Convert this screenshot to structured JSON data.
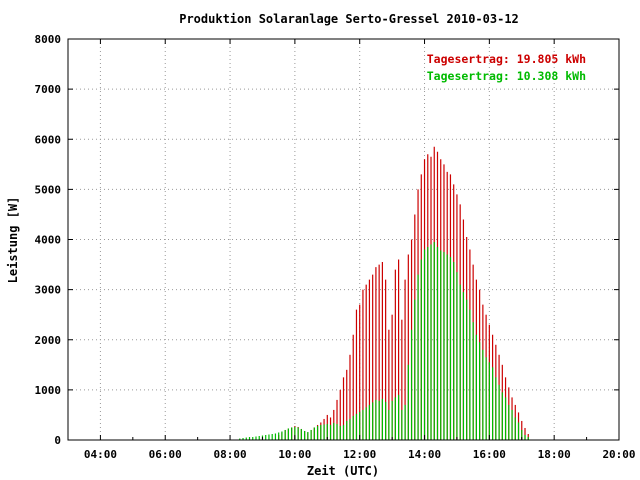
{
  "chart_data": {
    "type": "bar",
    "title": "Produktion Solaranlage Serto-Gressel 2010-03-12",
    "xlabel": "Zeit (UTC)",
    "ylabel": "Leistung [W]",
    "xlim": [
      3.0,
      20.0
    ],
    "ylim": [
      0,
      8000
    ],
    "grid": true,
    "legend_position": "top-right",
    "x_ticks": [
      {
        "value": 4,
        "label": "04:00"
      },
      {
        "value": 6,
        "label": "06:00"
      },
      {
        "value": 8,
        "label": "08:00"
      },
      {
        "value": 10,
        "label": "10:00"
      },
      {
        "value": 12,
        "label": "12:00"
      },
      {
        "value": 14,
        "label": "14:00"
      },
      {
        "value": 16,
        "label": "16:00"
      },
      {
        "value": 18,
        "label": "18:00"
      },
      {
        "value": 20,
        "label": "20:00"
      }
    ],
    "y_ticks": [
      {
        "value": 0,
        "label": "0"
      },
      {
        "value": 1000,
        "label": "1000"
      },
      {
        "value": 2000,
        "label": "2000"
      },
      {
        "value": 3000,
        "label": "3000"
      },
      {
        "value": 4000,
        "label": "4000"
      },
      {
        "value": 5000,
        "label": "5000"
      },
      {
        "value": 6000,
        "label": "6000"
      },
      {
        "value": 7000,
        "label": "7000"
      },
      {
        "value": 8000,
        "label": "8000"
      }
    ],
    "series": [
      {
        "name": "Tagesertrag: 19.805 kWh",
        "color": "#cc0000",
        "points": [
          [
            9.5,
            100
          ],
          [
            9.6,
            150
          ],
          [
            9.7,
            200
          ],
          [
            9.8,
            230
          ],
          [
            9.9,
            250
          ],
          [
            10.0,
            280
          ],
          [
            10.1,
            260
          ],
          [
            10.2,
            220
          ],
          [
            10.3,
            180
          ],
          [
            10.4,
            150
          ],
          [
            10.5,
            200
          ],
          [
            10.6,
            250
          ],
          [
            10.7,
            300
          ],
          [
            10.8,
            350
          ],
          [
            10.9,
            420
          ],
          [
            11.0,
            500
          ],
          [
            11.1,
            450
          ],
          [
            11.2,
            600
          ],
          [
            11.3,
            800
          ],
          [
            11.4,
            1000
          ],
          [
            11.5,
            1250
          ],
          [
            11.6,
            1400
          ],
          [
            11.7,
            1700
          ],
          [
            11.8,
            2100
          ],
          [
            11.9,
            2600
          ],
          [
            12.0,
            2700
          ],
          [
            12.1,
            3000
          ],
          [
            12.2,
            3100
          ],
          [
            12.3,
            3200
          ],
          [
            12.4,
            3300
          ],
          [
            12.5,
            3450
          ],
          [
            12.6,
            3500
          ],
          [
            12.7,
            3550
          ],
          [
            12.8,
            3200
          ],
          [
            12.9,
            2200
          ],
          [
            13.0,
            2500
          ],
          [
            13.1,
            3400
          ],
          [
            13.2,
            3600
          ],
          [
            13.3,
            2400
          ],
          [
            13.4,
            3200
          ],
          [
            13.5,
            3700
          ],
          [
            13.6,
            4000
          ],
          [
            13.7,
            4500
          ],
          [
            13.8,
            5000
          ],
          [
            13.9,
            5300
          ],
          [
            14.0,
            5600
          ],
          [
            14.1,
            5700
          ],
          [
            14.2,
            5650
          ],
          [
            14.3,
            5850
          ],
          [
            14.4,
            5750
          ],
          [
            14.5,
            5600
          ],
          [
            14.6,
            5500
          ],
          [
            14.7,
            5350
          ],
          [
            14.8,
            5300
          ],
          [
            14.9,
            5100
          ],
          [
            15.0,
            4900
          ],
          [
            15.1,
            4700
          ],
          [
            15.2,
            4400
          ],
          [
            15.3,
            4050
          ],
          [
            15.4,
            3800
          ],
          [
            15.5,
            3500
          ],
          [
            15.6,
            3200
          ],
          [
            15.7,
            3000
          ],
          [
            15.8,
            2700
          ],
          [
            15.9,
            2500
          ],
          [
            16.0,
            2300
          ],
          [
            16.1,
            2100
          ],
          [
            16.2,
            1900
          ],
          [
            16.3,
            1700
          ],
          [
            16.4,
            1500
          ],
          [
            16.5,
            1250
          ],
          [
            16.6,
            1050
          ],
          [
            16.7,
            850
          ],
          [
            16.8,
            700
          ],
          [
            16.9,
            550
          ],
          [
            17.0,
            380
          ],
          [
            17.1,
            240
          ],
          [
            17.2,
            120
          ]
        ]
      },
      {
        "name": "Tagesertrag: 10.308 kWh",
        "color": "#00bb00",
        "points": [
          [
            8.3,
            30
          ],
          [
            8.4,
            40
          ],
          [
            8.5,
            50
          ],
          [
            8.6,
            60
          ],
          [
            8.7,
            60
          ],
          [
            8.8,
            70
          ],
          [
            8.9,
            80
          ],
          [
            9.0,
            90
          ],
          [
            9.1,
            100
          ],
          [
            9.2,
            110
          ],
          [
            9.3,
            120
          ],
          [
            9.4,
            130
          ],
          [
            9.5,
            150
          ],
          [
            9.6,
            170
          ],
          [
            9.7,
            200
          ],
          [
            9.8,
            230
          ],
          [
            9.9,
            250
          ],
          [
            10.0,
            260
          ],
          [
            10.1,
            250
          ],
          [
            10.2,
            220
          ],
          [
            10.3,
            180
          ],
          [
            10.4,
            160
          ],
          [
            10.5,
            200
          ],
          [
            10.6,
            250
          ],
          [
            10.7,
            280
          ],
          [
            10.8,
            300
          ],
          [
            10.9,
            310
          ],
          [
            11.0,
            320
          ],
          [
            11.1,
            300
          ],
          [
            11.2,
            340
          ],
          [
            11.3,
            320
          ],
          [
            11.4,
            280
          ],
          [
            11.5,
            300
          ],
          [
            11.6,
            380
          ],
          [
            11.7,
            420
          ],
          [
            11.8,
            480
          ],
          [
            11.9,
            520
          ],
          [
            12.0,
            560
          ],
          [
            12.1,
            600
          ],
          [
            12.2,
            650
          ],
          [
            12.3,
            700
          ],
          [
            12.4,
            750
          ],
          [
            12.5,
            800
          ],
          [
            12.6,
            780
          ],
          [
            12.7,
            820
          ],
          [
            12.8,
            760
          ],
          [
            12.9,
            600
          ],
          [
            13.0,
            780
          ],
          [
            13.1,
            850
          ],
          [
            13.2,
            900
          ],
          [
            13.3,
            600
          ],
          [
            13.4,
            700
          ],
          [
            13.5,
            1500
          ],
          [
            13.6,
            2200
          ],
          [
            13.7,
            2800
          ],
          [
            13.8,
            3300
          ],
          [
            13.9,
            3600
          ],
          [
            14.0,
            3800
          ],
          [
            14.1,
            3850
          ],
          [
            14.2,
            3900
          ],
          [
            14.3,
            3950
          ],
          [
            14.4,
            3850
          ],
          [
            14.5,
            3780
          ],
          [
            14.6,
            3750
          ],
          [
            14.7,
            3700
          ],
          [
            14.8,
            3650
          ],
          [
            14.9,
            3550
          ],
          [
            15.0,
            3350
          ],
          [
            15.1,
            3100
          ],
          [
            15.2,
            2950
          ],
          [
            15.3,
            2800
          ],
          [
            15.4,
            2600
          ],
          [
            15.5,
            2350
          ],
          [
            15.6,
            2100
          ],
          [
            15.7,
            1950
          ],
          [
            15.8,
            1800
          ],
          [
            15.9,
            1650
          ],
          [
            16.0,
            1550
          ],
          [
            16.1,
            1450
          ],
          [
            16.2,
            1250
          ],
          [
            16.3,
            1100
          ],
          [
            16.4,
            950
          ],
          [
            16.5,
            850
          ],
          [
            16.6,
            700
          ],
          [
            16.7,
            600
          ],
          [
            16.8,
            450
          ],
          [
            16.9,
            350
          ],
          [
            17.0,
            200
          ],
          [
            17.1,
            100
          ],
          [
            17.2,
            60
          ]
        ]
      }
    ]
  }
}
